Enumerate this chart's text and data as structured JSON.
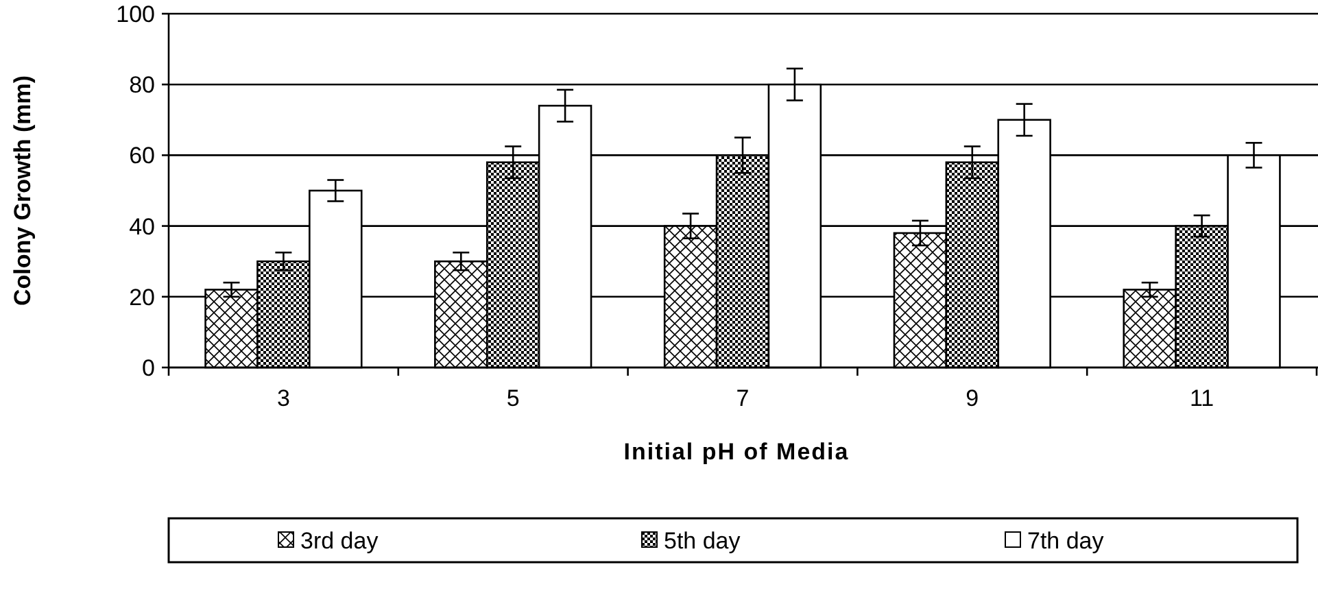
{
  "chart_data": {
    "type": "bar",
    "xlabel": "Initial pH of Media",
    "ylabel": "Colony Growth (mm)",
    "categories": [
      "3",
      "5",
      "7",
      "9",
      "11"
    ],
    "series": [
      {
        "name": "3rd day",
        "color": "#000000",
        "values": [
          22,
          30,
          40,
          38,
          22
        ],
        "errors": [
          2,
          2.5,
          3.5,
          3.5,
          2
        ]
      },
      {
        "name": "5th day",
        "color": "#000000",
        "values": [
          30,
          58,
          60,
          58,
          40
        ],
        "errors": [
          2.5,
          4.5,
          5,
          4.5,
          3
        ]
      },
      {
        "name": "7th day",
        "color": "#ffffff",
        "values": [
          50,
          74,
          80,
          70,
          60
        ],
        "errors": [
          3,
          4.5,
          4.5,
          4.5,
          3.5
        ]
      }
    ],
    "ylim": [
      0,
      100
    ],
    "yticks": [
      0,
      20,
      40,
      60,
      80,
      100
    ],
    "grid": "y",
    "legend": "bottom"
  }
}
